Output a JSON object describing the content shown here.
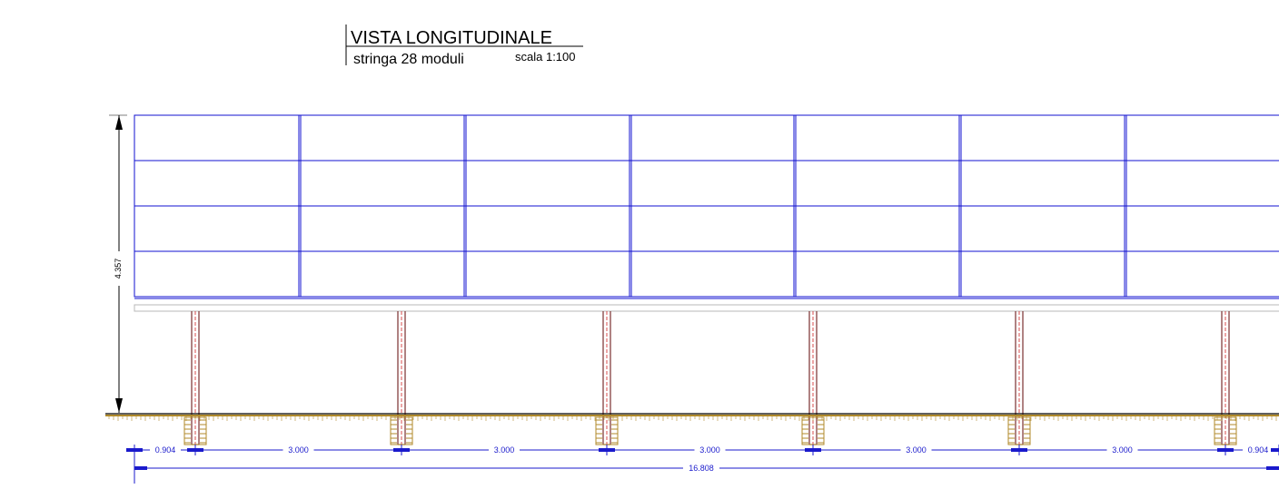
{
  "title": {
    "main": "VISTA LONGITUDINALE",
    "sub": "stringa 28 moduli",
    "scale": "scala 1:100"
  },
  "dimensions": {
    "height": "4.357",
    "end_left": "0.904",
    "end_right": "0.904",
    "spans": [
      "3.000",
      "3.000",
      "3.000",
      "3.000",
      "3.000"
    ],
    "total": "16.808"
  },
  "structure": {
    "module_columns_visible": 7,
    "module_rows": 4,
    "posts": 6
  },
  "colors": {
    "modules": "#1010d0",
    "dimensions": "#1a1acc",
    "ground": "#b08a2a",
    "post": "#7a3030",
    "post_axis": "#d02020",
    "rail": "#b8b8b8"
  }
}
